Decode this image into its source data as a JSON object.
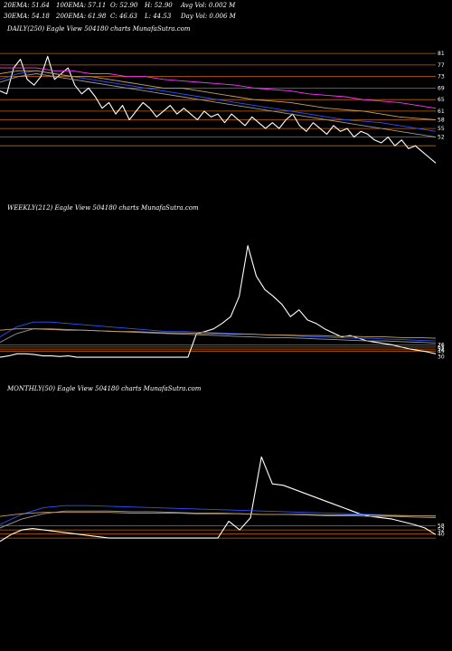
{
  "header": {
    "row1": [
      "20EMA: 51.64",
      "100EMA: 57.11",
      "O: 52.90",
      "H: 52.90",
      "Avg Vol: 0.002  M"
    ],
    "row2": [
      "30EMA: 54.18",
      "200EMA: 61.98",
      "C: 46.63",
      "L: 44.53",
      "Day Vol: 0.006  M"
    ]
  },
  "colors": {
    "background": "#000000",
    "price": "#ffffff",
    "ema_blue": "#2a55ff",
    "ema_magenta": "#ff33ff",
    "grid_orange": "#c86400",
    "ema_gray": "#9a9a9a",
    "ema_tan": "#c8a060"
  },
  "chart_data": [
    {
      "type": "line",
      "title": "DAILY(250) Eagle  View  504180  charts MunafaSutra.com",
      "ylim": [
        29,
        87
      ],
      "levels": [
        81,
        77,
        73,
        69,
        65,
        61,
        58,
        55,
        52,
        49
      ],
      "tick_labels": [
        "81",
        "77",
        "73",
        "69",
        "65",
        "61",
        "58",
        "55",
        "52"
      ],
      "series": [
        {
          "values": [
            68,
            67,
            76,
            79,
            72,
            70,
            73,
            80,
            72,
            74,
            76,
            70,
            67,
            69,
            66,
            62,
            64,
            60,
            63,
            58,
            61,
            64,
            62,
            59,
            61,
            63,
            60,
            62,
            60,
            58,
            61,
            59,
            60,
            57,
            60,
            58,
            56,
            59,
            57,
            55,
            57,
            55,
            58,
            60,
            56,
            54,
            57,
            55,
            53,
            56,
            54,
            55,
            52,
            54,
            53,
            51,
            50,
            52,
            49,
            51,
            48,
            49,
            47,
            45,
            43
          ]
        },
        {
          "values": [
            72,
            74,
            75,
            74,
            73,
            72,
            71,
            70,
            69,
            68,
            67,
            66,
            65,
            64,
            63,
            62,
            61,
            60,
            59,
            58,
            57.5,
            57,
            56,
            55,
            54
          ]
        },
        {
          "values": [
            71,
            73,
            74,
            73,
            72,
            71,
            70,
            69,
            68,
            67,
            66,
            65,
            64,
            63,
            62,
            61,
            60,
            59,
            58,
            57,
            56,
            55,
            54,
            53,
            52
          ]
        },
        {
          "values": [
            74,
            75,
            75,
            74,
            73,
            73,
            72,
            71,
            70,
            69,
            69,
            68,
            67,
            66,
            65,
            64.5,
            64,
            63,
            62,
            61.5,
            61,
            60,
            59,
            58.5,
            58
          ]
        },
        {
          "values": [
            76,
            76,
            76,
            75,
            75,
            74,
            74,
            73,
            73,
            72,
            71.5,
            71,
            70.5,
            70,
            69,
            68.5,
            68,
            67,
            66.5,
            66,
            65,
            64.5,
            64,
            63,
            62
          ]
        }
      ]
    },
    {
      "type": "line",
      "title": "WEEKLY(212) Eagle  View  504180  charts MunafaSutra.com",
      "ylim": [
        0,
        250
      ],
      "levels": [
        58,
        55,
        52,
        49
      ],
      "tick_labels": [
        "76",
        "61",
        "52",
        "49",
        "30"
      ],
      "series": [
        {
          "values": [
            40,
            42,
            45,
            45,
            44,
            42,
            42,
            41,
            42,
            40,
            40,
            40,
            40,
            40,
            40,
            40,
            40,
            40,
            40,
            40,
            40,
            40,
            40,
            75,
            78,
            82,
            90,
            100,
            130,
            205,
            160,
            140,
            130,
            118,
            100,
            110,
            95,
            90,
            82,
            76,
            70,
            72,
            68,
            64,
            62,
            60,
            58,
            55,
            52,
            50,
            48,
            45
          ]
        },
        {
          "values": [
            70,
            85,
            92,
            92,
            90,
            88,
            86,
            84,
            82,
            80,
            78,
            78,
            77,
            76,
            75,
            74,
            73,
            72,
            71,
            70,
            69,
            68,
            68,
            67,
            66,
            65,
            64
          ]
        },
        {
          "values": [
            62,
            75,
            82,
            82,
            81,
            80,
            79,
            78,
            77,
            76,
            75,
            74,
            73,
            72,
            71,
            70,
            69,
            69,
            68,
            67,
            66,
            65,
            64,
            64,
            63,
            62,
            61
          ]
        },
        {
          "values": [
            80,
            82,
            82,
            81,
            80,
            80,
            79,
            78,
            78,
            77,
            76,
            76,
            75,
            75,
            74,
            74,
            73,
            73,
            72,
            72,
            71,
            71,
            70,
            70,
            69,
            69,
            68
          ]
        }
      ]
    },
    {
      "type": "line",
      "title": "MONTHLY(50) Eagle  View  504180  charts MunafaSutra.com",
      "ylim": [
        0,
        250
      ],
      "levels": [
        58,
        52,
        46,
        40
      ],
      "tick_labels": [
        "58",
        "52",
        "40"
      ],
      "series": [
        {
          "values": [
            35,
            45,
            52,
            54,
            52,
            50,
            48,
            46,
            44,
            42,
            40,
            40,
            40,
            40,
            40,
            40,
            40,
            40,
            40,
            40,
            40,
            65,
            52,
            70,
            160,
            120,
            118,
            112,
            106,
            100,
            94,
            88,
            82,
            76,
            72,
            70,
            68,
            64,
            60,
            55,
            45
          ]
        },
        {
          "values": [
            60,
            75,
            85,
            88,
            88,
            87,
            86,
            85,
            84,
            83,
            82,
            81,
            80,
            79,
            78,
            77,
            76,
            75,
            74,
            73,
            72
          ]
        },
        {
          "values": [
            55,
            68,
            76,
            80,
            80,
            80,
            79,
            79,
            78,
            77,
            77,
            76,
            75,
            75,
            74,
            73,
            73,
            72,
            72,
            71,
            70
          ]
        },
        {
          "values": [
            72,
            76,
            78,
            78,
            78,
            78,
            77,
            77,
            77,
            76,
            76,
            76,
            75,
            75,
            75,
            74,
            74,
            74,
            73,
            73,
            73
          ]
        }
      ]
    }
  ]
}
